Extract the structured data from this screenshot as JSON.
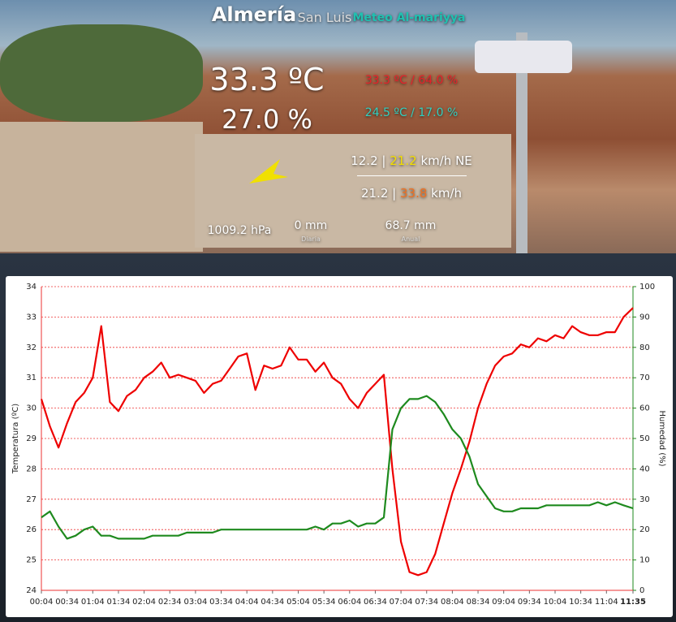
{
  "header": {
    "title": "Almería",
    "location": "San Luis",
    "brand": "Meteo Al-mariyya",
    "temperature": "33.3 ºC",
    "humidity": "27.0 %",
    "max": "33.3 ºC / 64.0 %",
    "min": "24.5 ºC / 17.0 %",
    "wind": {
      "speed": "12.2",
      "separator": "|",
      "gust": "21.2",
      "unit": "km/h",
      "direction": "NE"
    },
    "wind_max": {
      "speed": "21.2",
      "separator": "|",
      "gust": "33.8",
      "unit": "km/h"
    },
    "pressure": "1009.2 hPa",
    "rain_daily": {
      "value": "0 mm",
      "label": "Diaria"
    },
    "rain_annual": {
      "value": "68.7 mm",
      "label": "Anual"
    }
  },
  "chart_data": {
    "type": "line",
    "x": [
      "00:04",
      "00:14",
      "00:24",
      "00:34",
      "00:44",
      "00:54",
      "01:04",
      "01:14",
      "01:24",
      "01:34",
      "01:44",
      "01:54",
      "02:04",
      "02:14",
      "02:24",
      "02:34",
      "02:44",
      "02:54",
      "03:04",
      "03:14",
      "03:24",
      "03:34",
      "03:44",
      "03:54",
      "04:04",
      "04:14",
      "04:24",
      "04:34",
      "04:44",
      "04:54",
      "05:04",
      "05:14",
      "05:24",
      "05:34",
      "05:44",
      "05:54",
      "06:04",
      "06:14",
      "06:24",
      "06:34",
      "06:44",
      "06:54",
      "07:04",
      "07:14",
      "07:24",
      "07:34",
      "07:44",
      "07:54",
      "08:04",
      "08:14",
      "08:24",
      "08:34",
      "08:44",
      "08:54",
      "09:04",
      "09:14",
      "09:24",
      "09:34",
      "09:44",
      "09:54",
      "10:04",
      "10:14",
      "10:24",
      "10:34",
      "10:44",
      "10:54",
      "11:04",
      "11:14",
      "11:24",
      "11:35"
    ],
    "xlim": [
      "00:04",
      "11:35"
    ],
    "xticks": [
      "00:04",
      "00:34",
      "01:04",
      "01:34",
      "02:04",
      "02:34",
      "03:04",
      "03:34",
      "04:04",
      "04:34",
      "05:04",
      "05:34",
      "06:04",
      "06:34",
      "07:04",
      "07:34",
      "08:04",
      "08:34",
      "09:04",
      "09:34",
      "10:04",
      "10:34",
      "11:04",
      "11:35"
    ],
    "y_label": "Temperatura (ºC)",
    "y2_label": "Humedad (%)",
    "ylim": [
      24,
      34
    ],
    "yticks": [
      24,
      25,
      26,
      27,
      28,
      29,
      30,
      31,
      32,
      33,
      34
    ],
    "y2lim": [
      0,
      100
    ],
    "y2ticks": [
      0,
      10,
      20,
      30,
      40,
      50,
      60,
      70,
      80,
      90,
      100
    ],
    "grid": true,
    "series": [
      {
        "color": "#ee0000",
        "values": [
          30.3,
          29.4,
          28.7,
          29.5,
          30.2,
          30.5,
          31.0,
          32.7,
          30.2,
          29.9,
          30.4,
          30.6,
          31.0,
          31.2,
          31.5,
          31.0,
          31.1,
          31.0,
          30.9,
          30.5,
          30.8,
          30.9,
          31.3,
          31.7,
          31.8,
          30.6,
          31.4,
          31.3,
          31.4,
          32.0,
          31.6,
          31.6,
          31.2,
          31.5,
          31.0,
          30.8,
          30.3,
          30.0,
          30.5,
          30.8,
          31.1,
          28.0,
          25.6,
          24.6,
          24.5,
          24.6,
          25.2,
          26.2,
          27.2,
          28.0,
          28.9,
          30.0,
          30.8,
          31.4,
          31.7,
          31.8,
          32.1,
          32.0,
          32.3,
          32.2,
          32.4,
          32.3,
          32.7,
          32.5,
          32.4,
          32.4,
          32.5,
          32.5,
          33.0,
          33.3
        ]
      },
      {
        "color": "#1e8a1e",
        "axis": "y2",
        "values": [
          24,
          26,
          21,
          17,
          18,
          20,
          21,
          18,
          18,
          17,
          17,
          17,
          17,
          18,
          18,
          18,
          18,
          19,
          19,
          19,
          19,
          20,
          20,
          20,
          20,
          20,
          20,
          20,
          20,
          20,
          20,
          20,
          21,
          20,
          22,
          22,
          23,
          21,
          22,
          22,
          24,
          53,
          60,
          63,
          63,
          64,
          62,
          58,
          53,
          50,
          44,
          35,
          31,
          27,
          26,
          26,
          27,
          27,
          27,
          28,
          28,
          28,
          28,
          28,
          28,
          29,
          28,
          29,
          28,
          27
        ]
      }
    ]
  }
}
